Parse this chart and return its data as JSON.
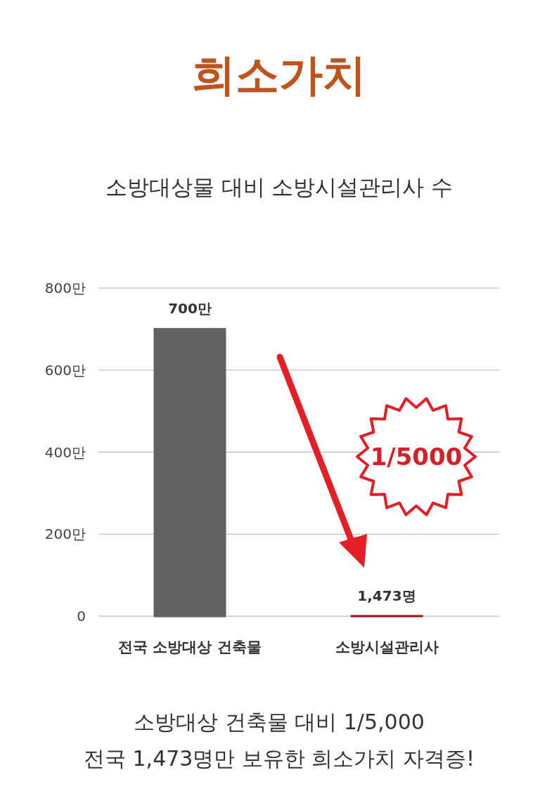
{
  "chart_data": {
    "type": "bar",
    "title": "희소가치",
    "subtitle": "소방대상물 대비 소방시설관리사 수",
    "categories": [
      "전국 소방대상 건축물",
      "소방시설관리사"
    ],
    "values": [
      700,
      0.1473
    ],
    "value_labels": [
      "700만",
      null
    ],
    "colors": [
      "#626262",
      "#a3151a"
    ],
    "ylim": [
      0,
      800
    ],
    "yticks": [
      0,
      {
        "value": 200,
        "label": "200만"
      },
      {
        "value": 400,
        "label": "400만"
      },
      {
        "value": 600,
        "label": "600만"
      },
      {
        "value": 800,
        "label": "800만"
      }
    ],
    "grid": "y",
    "annotations": [
      "1/5000",
      {
        "text": "1,473명",
        "x": "소방시설관리사",
        "y": 0.1473
      },
      "소방대상 건축물 대비 1/5,000",
      "전국 1,473명만 보유한 희소가치 자격증!"
    ]
  }
}
